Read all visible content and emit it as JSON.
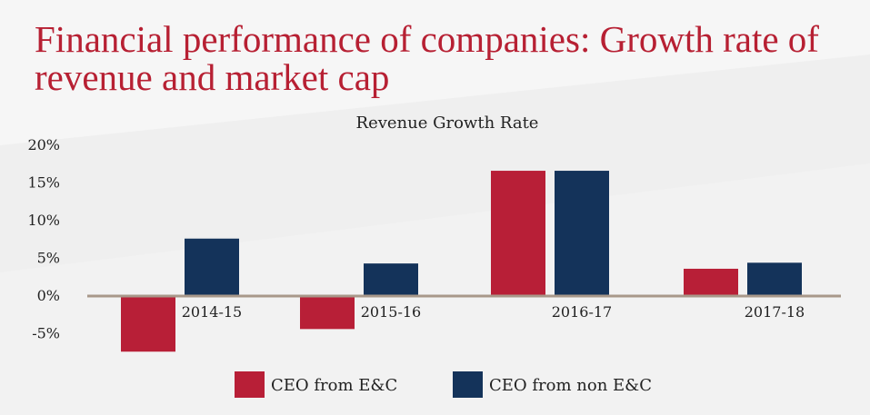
{
  "page": {
    "title_line1": "Financial performance of companies: Growth rate of",
    "title_line2": "revenue and market cap"
  },
  "colors": {
    "title": "#b72033",
    "ceo_ec": "#b81f37",
    "ceo_non_ec": "#14335a",
    "baseline": "#a8988a",
    "text": "#222222"
  },
  "chart_data": {
    "type": "bar",
    "title": "Revenue Growth Rate",
    "categories": [
      "2014-15",
      "2015-16",
      "2016-17",
      "2017-18"
    ],
    "series": [
      {
        "name": "CEO from E&C",
        "values": [
          -7.5,
          -4.5,
          16.5,
          3.5
        ]
      },
      {
        "name": "CEO from non E&C",
        "values": [
          7.5,
          4.2,
          16.5,
          4.3
        ]
      }
    ],
    "yticks": [
      "20%",
      "15%",
      "10%",
      "5%",
      "0%",
      "-5%"
    ],
    "ylim": [
      -7.5,
      20
    ],
    "legend_position": "bottom",
    "grid": false
  }
}
